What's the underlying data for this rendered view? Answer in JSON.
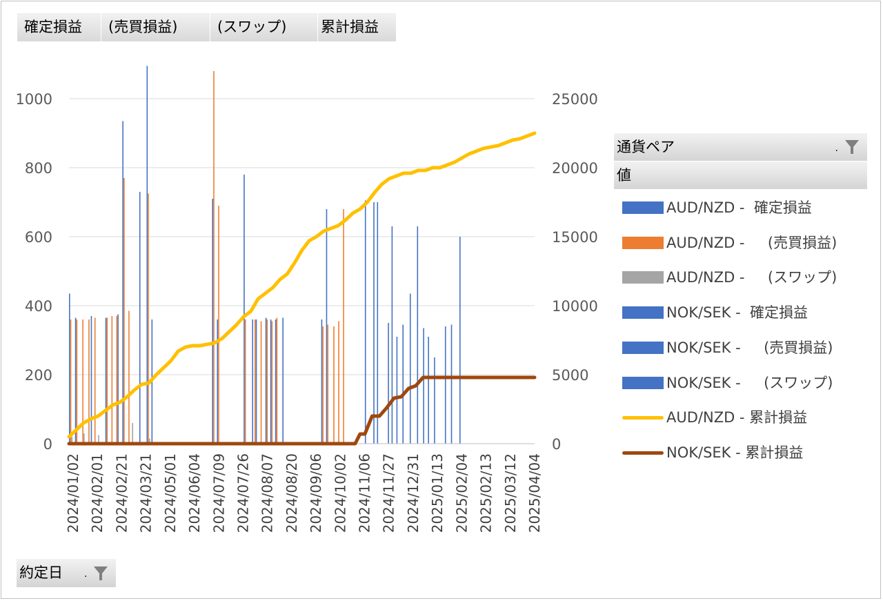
{
  "field_buttons": [
    {
      "label": "確定損益"
    },
    {
      "label": "(売買損益)"
    },
    {
      "label": "(スワップ)"
    },
    {
      "label": "累計損益"
    }
  ],
  "legend": {
    "header": "通貨ペア",
    "values_label": "値",
    "items": [
      {
        "label": "AUD/NZD -  確定損益",
        "color": "#4472c4",
        "kind": "bar"
      },
      {
        "label": "AUD/NZD -     (売買損益)",
        "color": "#ed7d31",
        "kind": "bar"
      },
      {
        "label": "AUD/NZD -     (スワップ)",
        "color": "#a5a5a5",
        "kind": "bar"
      },
      {
        "label": "NOK/SEK -  確定損益",
        "color": "#4472c4",
        "kind": "bar"
      },
      {
        "label": "NOK/SEK -     (売買損益)",
        "color": "#4472c4",
        "kind": "bar"
      },
      {
        "label": "NOK/SEK -     (スワップ)",
        "color": "#4472c4",
        "kind": "bar"
      },
      {
        "label": "AUD/NZD - 累計損益",
        "color": "#ffc000",
        "kind": "line"
      },
      {
        "label": "NOK/SEK - 累計損益",
        "color": "#9e480e",
        "kind": "line"
      }
    ]
  },
  "axis_button": {
    "label": "約定日"
  },
  "chart_data": {
    "type": "bar",
    "categories": [
      "2024/01/02",
      "2024/02/01",
      "2024/02/21",
      "2024/03/21",
      "2024/05/01",
      "2024/06/04",
      "2024/07/09",
      "2024/07/26",
      "2024/08/07",
      "2024/08/20",
      "2024/09/06",
      "2024/10/02",
      "2024/11/06",
      "2024/11/27",
      "2024/12/31",
      "2025/01/13",
      "2025/02/04",
      "2025/02/13",
      "2025/03/12",
      "2025/04/04"
    ],
    "ylim": [
      0,
      1100
    ],
    "yticks": [
      0,
      200,
      400,
      600,
      800,
      1000
    ],
    "y2lim": [
      0,
      27500
    ],
    "y2ticks": [
      0,
      5000,
      10000,
      15000,
      20000,
      25000
    ],
    "series": [
      {
        "name": "AUD/NZD -  確定損益",
        "color": "#4472c4",
        "axis": "left",
        "x": [
          0.0,
          0.25,
          0.9,
          1.5,
          2.0,
          2.2,
          2.9,
          3.2,
          3.4,
          5.9,
          6.1,
          7.2,
          7.55,
          7.7,
          8.1,
          8.3,
          8.5,
          8.8,
          10.4,
          10.6
        ],
        "values": [
          435,
          365,
          370,
          365,
          375,
          935,
          730,
          1095,
          360,
          710,
          360,
          780,
          360,
          360,
          365,
          360,
          360,
          365,
          360,
          680
        ]
      },
      {
        "name": "AUD/NZD -     (売買損益)",
        "color": "#ed7d31",
        "axis": "left",
        "x": [
          0.05,
          0.3,
          0.55,
          0.8,
          1.05,
          1.55,
          1.75,
          1.95,
          2.25,
          2.45,
          3.25,
          5.95,
          6.15,
          7.25,
          7.65,
          7.9,
          8.15,
          8.35,
          8.55,
          10.45,
          10.65,
          10.9,
          11.1,
          11.3
        ],
        "values": [
          360,
          360,
          360,
          360,
          365,
          365,
          370,
          370,
          770,
          385,
          725,
          1080,
          690,
          360,
          360,
          355,
          360,
          355,
          365,
          340,
          345,
          340,
          355,
          680
        ]
      },
      {
        "name": "AUD/NZD -     (スワップ)",
        "color": "#a5a5a5",
        "axis": "left",
        "x": [
          0.1,
          0.6,
          1.2,
          2.6,
          3.3
        ],
        "values": [
          20,
          30,
          25,
          60,
          15
        ]
      },
      {
        "name": "NOK/SEK -  確定損益",
        "color": "#4472c4",
        "axis": "left",
        "x": [
          12.2,
          12.55,
          12.7,
          13.15,
          13.3,
          13.5,
          13.75,
          14.05,
          14.35,
          14.6,
          14.8,
          15.05,
          15.5,
          15.75,
          16.1
        ],
        "values": [
          705,
          700,
          700,
          350,
          630,
          310,
          345,
          435,
          630,
          335,
          310,
          250,
          340,
          345,
          600
        ]
      },
      {
        "name": "NOK/SEK -     (売買損益)",
        "color": "#4472c4",
        "axis": "left",
        "x": [],
        "values": []
      },
      {
        "name": "NOK/SEK -     (スワップ)",
        "color": "#4472c4",
        "axis": "left",
        "x": [],
        "values": []
      },
      {
        "name": "AUD/NZD - 累計損益",
        "color": "#ffc000",
        "axis": "right",
        "kind": "line",
        "x": [
          0,
          0.3,
          0.6,
          0.9,
          1.2,
          1.5,
          1.8,
          2.1,
          2.4,
          2.7,
          3.0,
          3.3,
          3.6,
          3.9,
          4.2,
          4.5,
          4.8,
          5.1,
          5.4,
          5.7,
          6.0,
          6.3,
          6.6,
          6.9,
          7.2,
          7.5,
          7.8,
          8.1,
          8.4,
          8.7,
          9.0,
          9.3,
          9.6,
          9.9,
          10.2,
          10.5,
          10.8,
          11.1,
          11.4,
          11.7,
          12.0,
          12.3,
          12.6,
          12.9,
          13.2,
          13.5,
          13.8,
          14.1,
          14.4,
          14.7,
          15.0,
          15.3,
          15.6,
          15.9,
          16.2,
          16.5,
          16.8,
          17.1,
          17.4,
          17.7,
          18.0,
          18.3,
          18.6,
          18.9,
          19.2
        ],
        "values": [
          500,
          1000,
          1500,
          1800,
          2000,
          2400,
          2800,
          3000,
          3400,
          3900,
          4300,
          4400,
          5000,
          5500,
          6000,
          6700,
          7000,
          7100,
          7100,
          7200,
          7300,
          7600,
          8100,
          8600,
          9200,
          9600,
          10500,
          10900,
          11300,
          11900,
          12300,
          13100,
          14000,
          14700,
          15000,
          15400,
          15600,
          15800,
          16200,
          16700,
          17000,
          17500,
          18200,
          18800,
          19200,
          19400,
          19600,
          19600,
          19800,
          19800,
          20000,
          20000,
          20200,
          20400,
          20700,
          21000,
          21200,
          21400,
          21500,
          21600,
          21800,
          22000,
          22100,
          22300,
          22500
        ]
      },
      {
        "name": "NOK/SEK - 累計損益",
        "color": "#9e480e",
        "axis": "right",
        "kind": "line",
        "x": [
          0,
          11.8,
          12.0,
          12.2,
          12.5,
          12.8,
          13.1,
          13.4,
          13.7,
          14.0,
          14.3,
          14.6,
          14.9,
          15.2,
          15.5,
          16.0,
          16.5,
          17.0,
          17.5,
          18.0,
          18.5,
          19.0,
          19.2
        ],
        "values": [
          0,
          0,
          700,
          700,
          2000,
          2000,
          2600,
          3300,
          3400,
          4000,
          4200,
          4800,
          4800,
          4800,
          4800,
          4800,
          4800,
          4800,
          4800,
          4800,
          4800,
          4800,
          4800
        ]
      }
    ]
  }
}
